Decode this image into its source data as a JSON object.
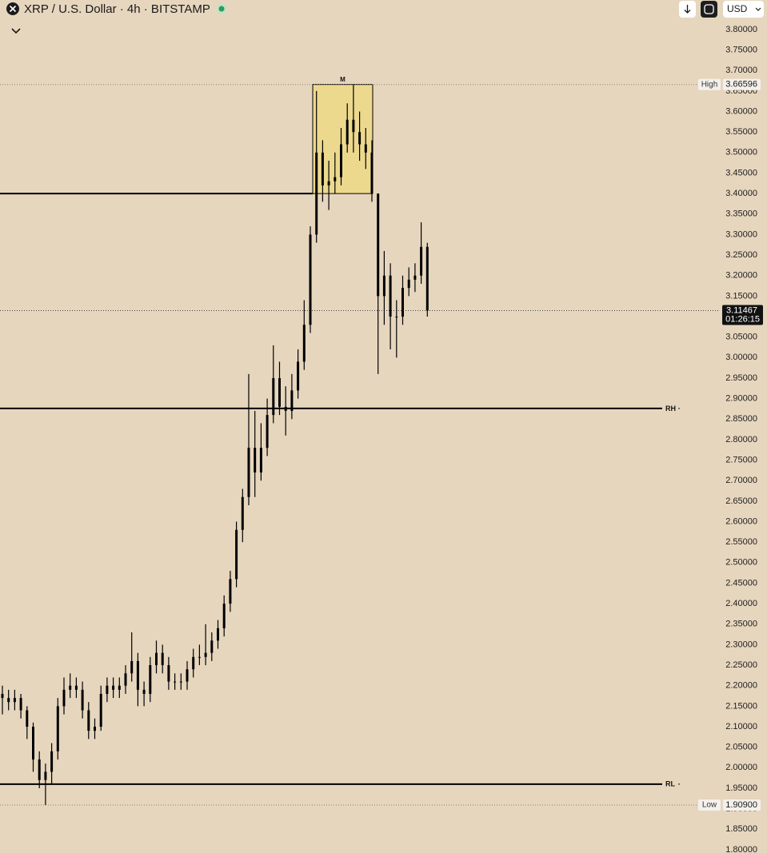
{
  "chart_data": {
    "type": "candlestick",
    "title": "XRP / U.S. Dollar · 4h · BITSTAMP",
    "currency": "USD",
    "color": "#000000",
    "open": [
      2.18,
      2.17,
      2.16,
      2.17,
      2.14,
      2.1,
      2.02,
      1.97,
      1.99,
      2.04,
      2.15,
      2.19,
      2.2,
      2.19,
      2.14,
      2.09,
      2.1,
      2.18,
      2.2,
      2.19,
      2.2,
      2.23,
      2.26,
      2.19,
      2.18,
      2.25,
      2.28,
      2.25,
      2.21,
      2.21,
      2.21,
      2.24,
      2.27,
      2.27,
      2.28,
      2.31,
      2.34,
      2.4,
      2.46,
      2.58,
      2.66,
      2.78,
      2.72,
      2.78,
      2.86,
      2.95,
      2.88,
      2.87,
      2.92,
      2.99,
      3.08,
      3.3,
      3.5,
      3.42,
      3.43,
      3.44,
      3.52,
      3.58,
      3.55,
      3.52,
      3.5,
      3.4,
      3.15,
      3.2,
      3.1,
      3.1,
      3.17,
      3.19,
      3.2,
      3.27
    ],
    "high": [
      2.2,
      2.19,
      2.19,
      2.18,
      2.15,
      2.11,
      2.04,
      2.01,
      2.06,
      2.17,
      2.22,
      2.23,
      2.22,
      2.21,
      2.16,
      2.12,
      2.2,
      2.22,
      2.22,
      2.22,
      2.25,
      2.33,
      2.28,
      2.21,
      2.27,
      2.31,
      2.3,
      2.27,
      2.23,
      2.23,
      2.26,
      2.29,
      2.3,
      2.35,
      2.33,
      2.36,
      2.42,
      2.48,
      2.6,
      2.68,
      2.96,
      2.87,
      2.84,
      2.9,
      3.03,
      2.99,
      2.93,
      2.96,
      3.02,
      3.14,
      3.32,
      3.65,
      3.53,
      3.48,
      3.5,
      3.56,
      3.62,
      3.66596,
      3.6,
      3.56,
      3.53,
      3.4,
      3.26,
      3.23,
      3.14,
      3.2,
      3.22,
      3.23,
      3.33,
      3.28
    ],
    "low": [
      2.13,
      2.14,
      2.14,
      2.12,
      2.07,
      1.99,
      1.95,
      1.909,
      1.96,
      2.02,
      2.13,
      2.17,
      2.17,
      2.12,
      2.07,
      2.07,
      2.09,
      2.16,
      2.17,
      2.17,
      2.18,
      2.21,
      2.15,
      2.15,
      2.16,
      2.23,
      2.23,
      2.19,
      2.19,
      2.19,
      2.19,
      2.22,
      2.25,
      2.25,
      2.26,
      2.29,
      2.32,
      2.38,
      2.44,
      2.55,
      2.64,
      2.66,
      2.7,
      2.76,
      2.84,
      2.86,
      2.81,
      2.85,
      2.9,
      2.97,
      3.06,
      3.28,
      3.38,
      3.36,
      3.4,
      3.42,
      3.5,
      3.5,
      3.48,
      3.46,
      3.38,
      2.96,
      3.08,
      3.02,
      3.0,
      3.08,
      3.15,
      3.16,
      3.18,
      3.1
    ],
    "close": [
      2.17,
      2.16,
      2.17,
      2.14,
      2.1,
      2.02,
      1.97,
      1.99,
      2.04,
      2.15,
      2.19,
      2.2,
      2.19,
      2.14,
      2.09,
      2.1,
      2.18,
      2.2,
      2.19,
      2.2,
      2.23,
      2.26,
      2.19,
      2.18,
      2.25,
      2.28,
      2.25,
      2.21,
      2.21,
      2.21,
      2.24,
      2.27,
      2.27,
      2.28,
      2.31,
      2.34,
      2.4,
      2.46,
      2.58,
      2.66,
      2.78,
      2.72,
      2.78,
      2.86,
      2.95,
      2.88,
      2.87,
      2.92,
      2.99,
      3.08,
      3.3,
      3.5,
      3.42,
      3.43,
      3.44,
      3.52,
      3.58,
      3.55,
      3.52,
      3.5,
      3.4,
      3.15,
      3.2,
      3.1,
      3.1,
      3.17,
      3.19,
      3.2,
      3.27,
      3.11467
    ],
    "ylim": [
      1.792,
      3.872
    ],
    "yticks": [
      {
        "value": 3.8,
        "label": "3.80000"
      },
      {
        "value": 3.75,
        "label": "3.75000"
      },
      {
        "value": 3.7,
        "label": "3.70000"
      },
      {
        "value": 3.65,
        "label": "3.65000"
      },
      {
        "value": 3.6,
        "label": "3.60000"
      },
      {
        "value": 3.55,
        "label": "3.55000"
      },
      {
        "value": 3.5,
        "label": "3.50000"
      },
      {
        "value": 3.45,
        "label": "3.45000"
      },
      {
        "value": 3.4,
        "label": "3.40000"
      },
      {
        "value": 3.35,
        "label": "3.35000"
      },
      {
        "value": 3.3,
        "label": "3.30000"
      },
      {
        "value": 3.25,
        "label": "3.25000"
      },
      {
        "value": 3.2,
        "label": "3.20000"
      },
      {
        "value": 3.15,
        "label": "3.15000"
      },
      {
        "value": 3.1,
        "label": "3.10000"
      },
      {
        "value": 3.05,
        "label": "3.05000"
      },
      {
        "value": 3.0,
        "label": "3.00000"
      },
      {
        "value": 2.95,
        "label": "2.95000"
      },
      {
        "value": 2.9,
        "label": "2.90000"
      },
      {
        "value": 2.85,
        "label": "2.85000"
      },
      {
        "value": 2.8,
        "label": "2.80000"
      },
      {
        "value": 2.75,
        "label": "2.75000"
      },
      {
        "value": 2.7,
        "label": "2.70000"
      },
      {
        "value": 2.65,
        "label": "2.65000"
      },
      {
        "value": 2.6,
        "label": "2.60000"
      },
      {
        "value": 2.55,
        "label": "2.55000"
      },
      {
        "value": 2.5,
        "label": "2.50000"
      },
      {
        "value": 2.45,
        "label": "2.45000"
      },
      {
        "value": 2.4,
        "label": "2.40000"
      },
      {
        "value": 2.35,
        "label": "2.35000"
      },
      {
        "value": 2.3,
        "label": "2.30000"
      },
      {
        "value": 2.25,
        "label": "2.25000"
      },
      {
        "value": 2.2,
        "label": "2.20000"
      },
      {
        "value": 2.15,
        "label": "2.15000"
      },
      {
        "value": 2.1,
        "label": "2.10000"
      },
      {
        "value": 2.05,
        "label": "2.05000"
      },
      {
        "value": 2.0,
        "label": "2.00000"
      },
      {
        "value": 1.95,
        "label": "1.95000"
      },
      {
        "value": 1.9,
        "label": "1.90000"
      },
      {
        "value": 1.85,
        "label": "1.85000"
      },
      {
        "value": 1.8,
        "label": "1.80000"
      }
    ],
    "support_line": 3.4,
    "levels": [
      {
        "label": "RH",
        "value": 2.876
      },
      {
        "label": "RL",
        "value": 1.96
      }
    ],
    "box": {
      "label": "M",
      "top": 3.66596,
      "bottom": 3.4
    },
    "session_high": {
      "label": "High",
      "value": 3.66596,
      "value_label": "3.66596"
    },
    "session_low": {
      "label": "Low",
      "value": 1.909,
      "value_label": "1.90900"
    },
    "last_price": {
      "value": 3.11467,
      "value_label": "3.11467",
      "countdown": "01:26:15"
    }
  }
}
